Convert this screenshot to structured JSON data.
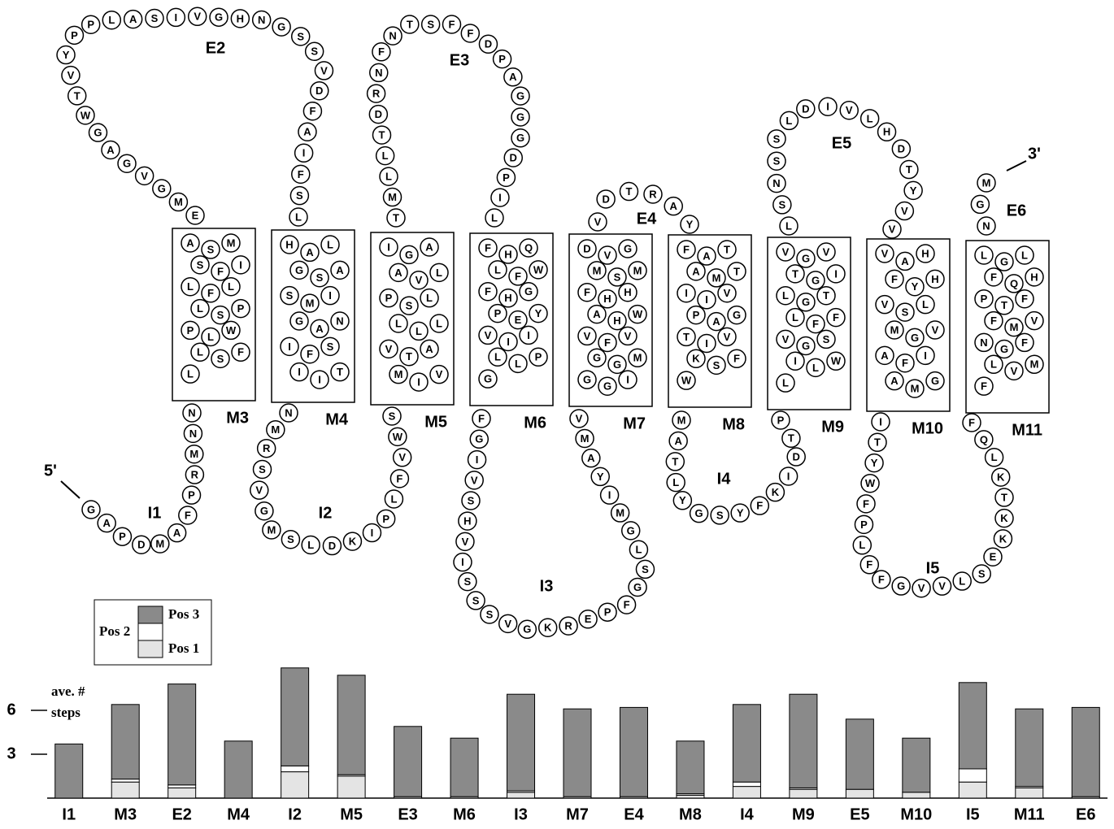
{
  "diagram": {
    "end_labels": [
      "5'",
      "3'"
    ],
    "segments": [
      {
        "label": "I1",
        "residues": [
          "G",
          "A",
          "P",
          "D",
          "M",
          "A",
          "F",
          "P",
          "R",
          "M",
          "N",
          "N"
        ]
      },
      {
        "label": "M3",
        "residues": [
          "A",
          "S",
          "M",
          "S",
          "F",
          "I",
          "L",
          "F",
          "L",
          "L",
          "S",
          "P",
          "P",
          "L",
          "W",
          "L",
          "S",
          "F",
          "L"
        ]
      },
      {
        "label": "E2",
        "residues": [
          "E",
          "M",
          "G",
          "V",
          "G",
          "A",
          "G",
          "W",
          "T",
          "V",
          "Y",
          "P",
          "P",
          "L",
          "A",
          "S",
          "I",
          "V",
          "G",
          "H",
          "N",
          "G",
          "S",
          "S",
          "V",
          "D",
          "F",
          "A",
          "I",
          "F",
          "S",
          "L"
        ]
      },
      {
        "label": "M4",
        "residues": [
          "H",
          "A",
          "L",
          "G",
          "S",
          "A",
          "S",
          "M",
          "I",
          "G",
          "A",
          "N",
          "I",
          "F",
          "S",
          "I",
          "I",
          "T"
        ]
      },
      {
        "label": "I2",
        "residues": [
          "N",
          "M",
          "R",
          "S",
          "V",
          "G",
          "M",
          "S",
          "L",
          "D",
          "K",
          "I",
          "P",
          "L",
          "F",
          "V",
          "W",
          "S"
        ]
      },
      {
        "label": "M5",
        "residues": [
          "I",
          "G",
          "A",
          "A",
          "V",
          "L",
          "P",
          "S",
          "L",
          "L",
          "L",
          "L",
          "V",
          "T",
          "A",
          "M",
          "I",
          "V"
        ]
      },
      {
        "label": "E3",
        "residues": [
          "T",
          "M",
          "L",
          "L",
          "T",
          "D",
          "R",
          "N",
          "F",
          "N",
          "T",
          "S",
          "F",
          "F",
          "D",
          "P",
          "A",
          "G",
          "G",
          "G",
          "D",
          "P",
          "I",
          "L"
        ]
      },
      {
        "label": "M6",
        "residues": [
          "F",
          "H",
          "Q",
          "L",
          "F",
          "W",
          "F",
          "H",
          "G",
          "P",
          "E",
          "Y",
          "V",
          "I",
          "I",
          "L",
          "L",
          "P",
          "G"
        ]
      },
      {
        "label": "I3",
        "residues": [
          "F",
          "G",
          "I",
          "V",
          "S",
          "H",
          "V",
          "I",
          "S",
          "S",
          "S",
          "V",
          "G",
          "K",
          "R",
          "E",
          "P",
          "F",
          "G",
          "S",
          "L",
          "G",
          "M",
          "I",
          "Y",
          "A",
          "M",
          "V"
        ]
      },
      {
        "label": "M7",
        "residues": [
          "D",
          "V",
          "G",
          "M",
          "S",
          "M",
          "F",
          "H",
          "H",
          "A",
          "H",
          "W",
          "V",
          "F",
          "V",
          "G",
          "G",
          "M",
          "G",
          "G",
          "I"
        ]
      },
      {
        "label": "E4",
        "residues": [
          "V",
          "D",
          "T",
          "R",
          "A",
          "Y"
        ]
      },
      {
        "label": "M8",
        "residues": [
          "F",
          "A",
          "T",
          "A",
          "M",
          "T",
          "I",
          "I",
          "V",
          "P",
          "A",
          "G",
          "T",
          "I",
          "V",
          "K",
          "S",
          "F",
          "W"
        ]
      },
      {
        "label": "I4",
        "residues": [
          "M",
          "A",
          "T",
          "L",
          "Y",
          "G",
          "S",
          "Y",
          "F",
          "K",
          "I",
          "D",
          "T",
          "P"
        ]
      },
      {
        "label": "M9",
        "residues": [
          "V",
          "G",
          "V",
          "T",
          "G",
          "I",
          "L",
          "G",
          "T",
          "L",
          "F",
          "F",
          "V",
          "G",
          "S",
          "I",
          "L",
          "W",
          "L"
        ]
      },
      {
        "label": "E5",
        "residues": [
          "L",
          "S",
          "N",
          "S",
          "S",
          "L",
          "D",
          "I",
          "V",
          "L",
          "H",
          "D",
          "T",
          "Y",
          "V",
          "V"
        ]
      },
      {
        "label": "M10",
        "residues": [
          "V",
          "A",
          "H",
          "F",
          "Y",
          "H",
          "V",
          "S",
          "L",
          "M",
          "G",
          "V",
          "A",
          "F",
          "I",
          "A",
          "M",
          "G"
        ]
      },
      {
        "label": "I5",
        "residues": [
          "I",
          "T",
          "Y",
          "W",
          "F",
          "P",
          "L",
          "F",
          "F",
          "G",
          "V",
          "V",
          "L",
          "S",
          "E",
          "K",
          "K",
          "T",
          "K",
          "L",
          "Q",
          "F"
        ]
      },
      {
        "label": "M11",
        "residues": [
          "L",
          "G",
          "L",
          "F",
          "Q",
          "H",
          "P",
          "T",
          "F",
          "F",
          "M",
          "V",
          "N",
          "G",
          "F",
          "L",
          "V",
          "M",
          "F"
        ]
      },
      {
        "label": "E6",
        "residues": [
          "N",
          "G",
          "M"
        ]
      }
    ]
  },
  "chart_data": {
    "type": "stacked-bar",
    "ylabel": [
      "ave. #",
      "steps"
    ],
    "categories": [
      "I1",
      "M3",
      "E2",
      "M4",
      "I2",
      "M5",
      "E3",
      "M6",
      "I3",
      "M7",
      "E4",
      "M8",
      "I4",
      "M9",
      "E5",
      "M10",
      "I5",
      "M11",
      "E6"
    ],
    "series": [
      {
        "name": "Pos 1",
        "color": "#e4e4e4",
        "values": [
          0,
          1.1,
          0.7,
          0,
          1.8,
          1.5,
          0.1,
          0.1,
          0.4,
          0.1,
          0.1,
          0.2,
          0.8,
          0.6,
          0.6,
          0.4,
          1.1,
          0.7,
          0.1
        ]
      },
      {
        "name": "Pos 2",
        "color": "#ffffff",
        "values": [
          0,
          0.2,
          0.2,
          0,
          0.4,
          0.1,
          0,
          0,
          0.1,
          0,
          0,
          0.1,
          0.3,
          0.1,
          0,
          0,
          0.9,
          0.1,
          0
        ]
      },
      {
        "name": "Pos 3",
        "color": "#8a8a8a",
        "values": [
          3.7,
          5.1,
          6.9,
          3.9,
          6.7,
          6.8,
          4.8,
          4.0,
          6.6,
          6.0,
          6.1,
          3.6,
          5.3,
          6.4,
          4.8,
          3.7,
          5.9,
          5.3,
          6.1
        ]
      }
    ],
    "ylim": [
      0,
      9.5
    ],
    "yticks": [
      3,
      6
    ]
  }
}
